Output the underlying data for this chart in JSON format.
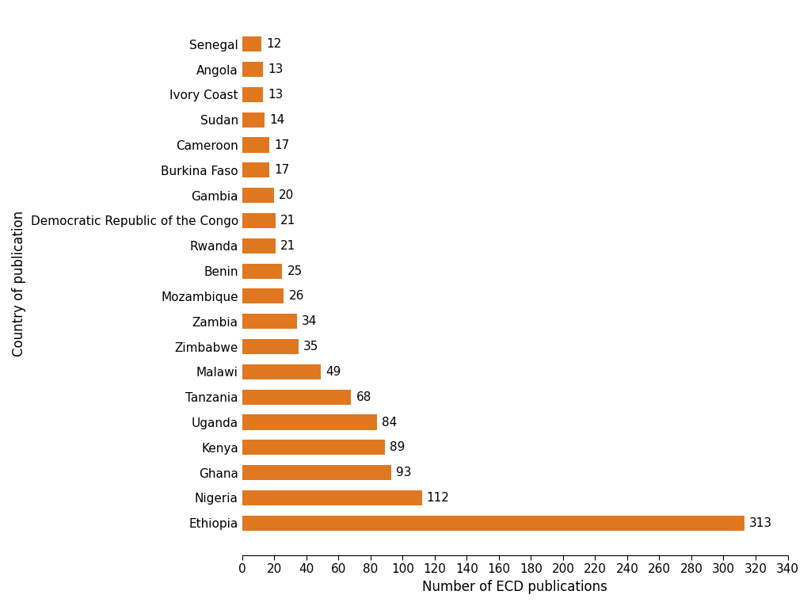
{
  "countries": [
    "Ethiopia",
    "Nigeria",
    "Ghana",
    "Kenya",
    "Uganda",
    "Tanzania",
    "Malawi",
    "Zimbabwe",
    "Zambia",
    "Mozambique",
    "Benin",
    "Rwanda",
    "Democratic Republic of the Congo",
    "Gambia",
    "Burkina Faso",
    "Cameroon",
    "Sudan",
    "Ivory Coast",
    "Angola",
    "Senegal"
  ],
  "values": [
    313,
    112,
    93,
    89,
    84,
    68,
    49,
    35,
    34,
    26,
    25,
    21,
    21,
    20,
    17,
    17,
    14,
    13,
    13,
    12
  ],
  "bar_color": "#E07820",
  "xlabel": "Number of ECD publications",
  "ylabel": "Country of publication",
  "xlim": [
    0,
    340
  ],
  "xticks": [
    0,
    20,
    40,
    60,
    80,
    100,
    120,
    140,
    160,
    180,
    200,
    220,
    240,
    260,
    280,
    300,
    320,
    340
  ],
  "background_color": "#ffffff",
  "label_fontsize": 12,
  "tick_fontsize": 11,
  "value_fontsize": 11
}
